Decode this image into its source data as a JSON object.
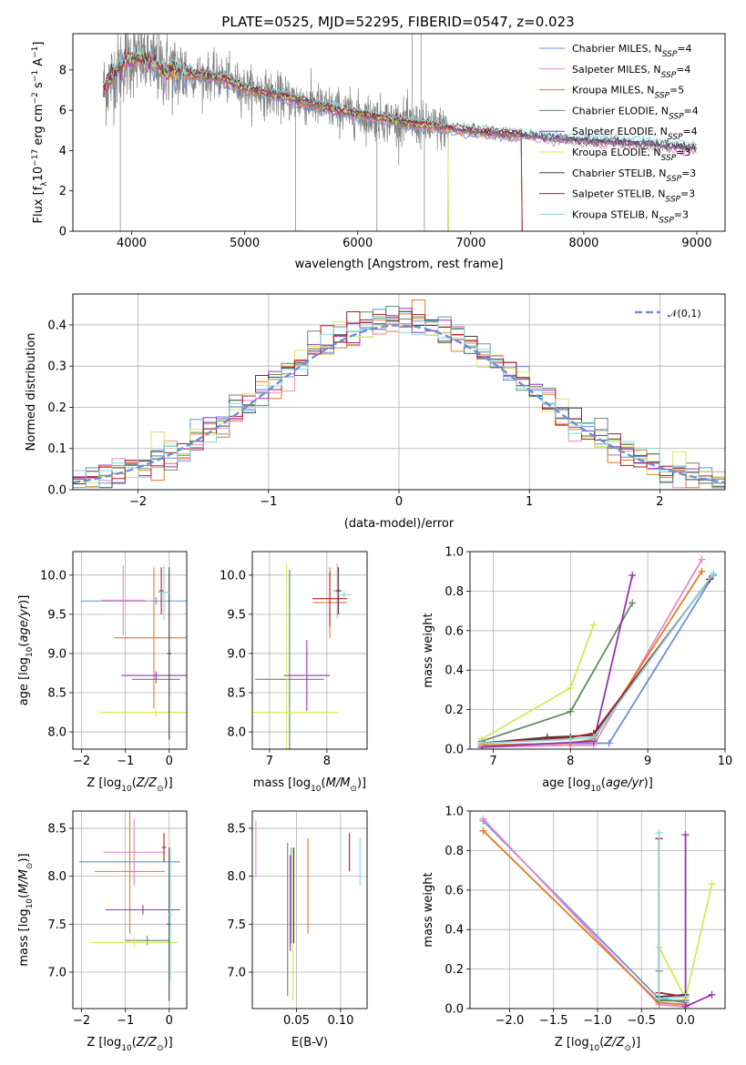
{
  "figure": {
    "title": "PLATE=0525, MJD=52295, FIBERID=0547, z=0.023"
  },
  "colors": {
    "chabrier_miles": "#6a8fd8",
    "salpeter_miles": "#e58ac8",
    "kroupa_miles": "#e07b2a",
    "chabrier_elodie": "#5f8a5f",
    "salpeter_elodie": "#9a32b0",
    "kroupa_elodie": "#d4e85a",
    "chabrier_stelib": "#404040",
    "salpeter_stelib": "#b01a22",
    "kroupa_stelib": "#86d8d8",
    "data_spectrum": "#808080",
    "normal_curve": "#6a8fd8"
  },
  "chart_data": [
    {
      "id": "spectrum",
      "type": "line",
      "xlabel": "wavelength [Angstrom, rest frame]",
      "ylabel_main": "Flux [f",
      "ylabel_sub": "λ",
      "ylabel_rest": "10",
      "ylabel_exp": "−17",
      "ylabel_unit": " erg cm",
      "ylabel_unit_exp": "−2",
      "ylabel_s": " s",
      "ylabel_s_exp": "−1",
      "ylabel_a": " A",
      "ylabel_a_exp": "−1",
      "ylabel_end": "]",
      "xlim": [
        3480,
        9250
      ],
      "ylim": [
        0,
        9.8
      ],
      "xticks": [
        4000,
        5000,
        6000,
        7000,
        8000,
        9000
      ],
      "yticks": [
        0,
        2,
        4,
        6,
        8
      ],
      "legend_position": "top-right",
      "legend": [
        {
          "name": "Chabrier MILES, N",
          "sub": "SSP",
          "tail": "=4",
          "color_key": "chabrier_miles"
        },
        {
          "name": "Salpeter MILES, N",
          "sub": "SSP",
          "tail": "=4",
          "color_key": "salpeter_miles"
        },
        {
          "name": "Kroupa MILES, N",
          "sub": "SSP",
          "tail": "=5",
          "color_key": "kroupa_miles"
        },
        {
          "name": "Chabrier ELODIE, N",
          "sub": "SSP",
          "tail": "=4",
          "color_key": "chabrier_elodie"
        },
        {
          "name": "Salpeter ELODIE, N",
          "sub": "SSP",
          "tail": "=4",
          "color_key": "salpeter_elodie"
        },
        {
          "name": "Kroupa ELODIE, N",
          "sub": "SSP",
          "tail": "=3",
          "color_key": "kroupa_elodie"
        },
        {
          "name": "Chabrier STELIB, N",
          "sub": "SSP",
          "tail": "=3",
          "color_key": "chabrier_stelib"
        },
        {
          "name": "Salpeter STELIB, N",
          "sub": "SSP",
          "tail": "=3",
          "color_key": "salpeter_stelib"
        },
        {
          "name": "Kroupa STELIB, N",
          "sub": "SSP",
          "tail": "=3",
          "color_key": "kroupa_stelib"
        }
      ],
      "continuum": [
        [
          3750,
          7.0
        ],
        [
          3800,
          7.4
        ],
        [
          3900,
          8.2
        ],
        [
          4000,
          8.6
        ],
        [
          4100,
          8.5
        ],
        [
          4200,
          8.3
        ],
        [
          4300,
          8.0
        ],
        [
          4500,
          7.8
        ],
        [
          4800,
          7.6
        ],
        [
          5000,
          7.1
        ],
        [
          5300,
          6.7
        ],
        [
          5600,
          6.3
        ],
        [
          5900,
          5.9
        ],
        [
          6200,
          5.6
        ],
        [
          6500,
          5.3
        ],
        [
          6800,
          5.1
        ],
        [
          7100,
          4.9
        ],
        [
          7400,
          4.8
        ],
        [
          7700,
          4.6
        ],
        [
          8000,
          4.5
        ],
        [
          8300,
          4.4
        ],
        [
          8600,
          4.3
        ],
        [
          9000,
          4.1
        ]
      ],
      "data_range": [
        3750,
        9000
      ],
      "model_ranges": [
        [
          3750,
          7450
        ],
        [
          3750,
          9000
        ],
        [
          3750,
          7450
        ],
        [
          3750,
          9000
        ],
        [
          3750,
          9000
        ],
        [
          3750,
          6800
        ],
        [
          3750,
          9000
        ],
        [
          3750,
          7450
        ],
        [
          3750,
          9000
        ]
      ]
    },
    {
      "id": "residuals",
      "type": "line",
      "xlabel": "(data-model)/error",
      "ylabel": "Normed distribution",
      "xlim": [
        -2.5,
        2.5
      ],
      "ylim": [
        0,
        0.475
      ],
      "xticks": [
        -2,
        -1,
        0,
        1,
        2
      ],
      "yticks": [
        0.0,
        0.1,
        0.2,
        0.3,
        0.4
      ],
      "legend_position": "top-right",
      "legend_label": "𝒩(0,1)",
      "bin_width": 0.1
    },
    {
      "id": "age_vs_Z",
      "type": "scatter",
      "xlabel": "Z [log",
      "xlabel_sub": "10",
      "xlabel_rest": "(Z/Z",
      "xlabel_sun": "⊙",
      "xlabel_end": ")]",
      "ylabel": "age  [log",
      "ylabel_sub": "10",
      "ylabel_rest": "(age/yr)]",
      "xlim": [
        -2.2,
        0.4
      ],
      "ylim": [
        7.78,
        10.3
      ],
      "xticks": [
        -2,
        -1,
        0
      ],
      "yticks": [
        8.0,
        8.5,
        9.0,
        9.5,
        10.0
      ],
      "points": [
        {
          "color_key": "chabrier_miles",
          "x": -0.3,
          "xerr": 1.7,
          "y": 9.67,
          "yerr": 0.05
        },
        {
          "color_key": "salpeter_miles",
          "x": -1.05,
          "xerr": 0.5,
          "y": 9.68,
          "yerr": 0.45
        },
        {
          "color_key": "kroupa_miles",
          "x": -0.35,
          "xerr": 0.9,
          "y": 9.2,
          "yerr": 0.9
        },
        {
          "color_key": "chabrier_elodie",
          "x": -0.3,
          "xerr": 0.55,
          "y": 8.67,
          "yerr": 0.05
        },
        {
          "color_key": "salpeter_elodie",
          "x": -0.3,
          "xerr": 0.8,
          "y": 8.72,
          "yerr": 0.05
        },
        {
          "color_key": "kroupa_elodie",
          "x": -0.3,
          "xerr": 1.3,
          "y": 8.25,
          "yerr": 0.05
        },
        {
          "color_key": "chabrier_stelib",
          "x": 0.0,
          "xerr": 0.05,
          "y": 9.0,
          "yerr": 1.1
        },
        {
          "color_key": "salpeter_stelib",
          "x": -0.18,
          "xerr": 0.05,
          "y": 9.8,
          "yerr": 0.3
        },
        {
          "color_key": "kroupa_stelib",
          "x": -0.12,
          "xerr": 0.15,
          "y": 9.78,
          "yerr": 0.35
        }
      ]
    },
    {
      "id": "age_vs_mass",
      "type": "scatter",
      "xlabel": "mass [log",
      "xlabel_sub": "10",
      "xlabel_rest": "(M/M",
      "xlabel_sun": "⊙",
      "xlabel_end": ")]",
      "xlim": [
        6.7,
        8.7
      ],
      "ylim": [
        7.78,
        10.3
      ],
      "xticks": [
        7,
        8
      ],
      "yticks": [
        8.0,
        8.5,
        9.0,
        9.5,
        10.0
      ],
      "points": [
        {
          "color_key": "chabrier_miles",
          "x": 8.2,
          "xerr": 0.05,
          "y": 9.8,
          "yerr": 0.3
        },
        {
          "color_key": "salpeter_miles",
          "x": 8.18,
          "xerr": 0.08,
          "y": 9.8,
          "yerr": 0.35
        },
        {
          "color_key": "kroupa_miles",
          "x": 8.05,
          "xerr": 0.3,
          "y": 9.65,
          "yerr": 0.45
        },
        {
          "color_key": "chabrier_elodie",
          "x": 7.35,
          "xerr": 0.6,
          "y": 8.67,
          "yerr": 1.4
        },
        {
          "color_key": "salpeter_elodie",
          "x": 7.65,
          "xerr": 0.4,
          "y": 8.72,
          "yerr": 0.45
        },
        {
          "color_key": "kroupa_elodie",
          "x": 7.3,
          "xerr": 0.9,
          "y": 8.25,
          "yerr": 1.9
        },
        {
          "color_key": "chabrier_stelib",
          "x": 8.2,
          "xerr": 0.05,
          "y": 9.8,
          "yerr": 0.3
        },
        {
          "color_key": "salpeter_stelib",
          "x": 8.05,
          "xerr": 0.3,
          "y": 9.7,
          "yerr": 0.35
        },
        {
          "color_key": "kroupa_stelib",
          "x": 8.3,
          "xerr": 0.12,
          "y": 9.75,
          "yerr": 0.05
        }
      ]
    },
    {
      "id": "mass_weight_vs_age",
      "type": "line",
      "xlabel": "age  [log",
      "xlabel_sub": "10",
      "xlabel_rest": "(age/yr)]",
      "ylabel": "mass weight",
      "xlim": [
        6.7,
        10.0
      ],
      "ylim": [
        0,
        1.0
      ],
      "xticks": [
        7,
        8,
        9,
        10
      ],
      "yticks": [
        0.0,
        0.2,
        0.4,
        0.6,
        0.8,
        1.0
      ],
      "series": [
        {
          "color_key": "chabrier_miles",
          "x": [
            6.85,
            8.0,
            8.5,
            9.85
          ],
          "y": [
            0.02,
            0.03,
            0.03,
            0.88
          ]
        },
        {
          "color_key": "salpeter_miles",
          "x": [
            6.85,
            8.0,
            8.3,
            9.7
          ],
          "y": [
            0.01,
            0.02,
            0.02,
            0.96
          ]
        },
        {
          "color_key": "kroupa_miles",
          "x": [
            6.85,
            8.0,
            8.3,
            9.7
          ],
          "y": [
            0.02,
            0.03,
            0.05,
            0.9
          ]
        },
        {
          "color_key": "chabrier_elodie",
          "x": [
            6.85,
            8.0,
            8.8
          ],
          "y": [
            0.04,
            0.19,
            0.74
          ]
        },
        {
          "color_key": "salpeter_elodie",
          "x": [
            6.85,
            8.3,
            8.8
          ],
          "y": [
            0.01,
            0.04,
            0.88
          ]
        },
        {
          "color_key": "kroupa_elodie",
          "x": [
            6.85,
            8.0,
            8.3
          ],
          "y": [
            0.05,
            0.31,
            0.63
          ]
        },
        {
          "color_key": "chabrier_stelib",
          "x": [
            6.85,
            7.7,
            8.3,
            9.8
          ],
          "y": [
            0.03,
            0.06,
            0.07,
            0.86
          ]
        },
        {
          "color_key": "salpeter_stelib",
          "x": [
            6.85,
            8.0,
            8.3,
            9.8
          ],
          "y": [
            0.03,
            0.06,
            0.08,
            0.86
          ]
        },
        {
          "color_key": "kroupa_stelib",
          "x": [
            6.85,
            8.0,
            8.3,
            9.85
          ],
          "y": [
            0.03,
            0.05,
            0.06,
            0.89
          ]
        }
      ]
    },
    {
      "id": "mass_vs_Z",
      "type": "scatter",
      "xlabel": "Z [log",
      "xlabel_sub": "10",
      "xlabel_rest": "(Z/Z",
      "xlabel_sun": "⊙",
      "xlabel_end": ")]",
      "ylabel": "mass [log",
      "ylabel_sub": "10",
      "ylabel_rest": "(M/M",
      "ylabel_sun": "⊙",
      "ylabel_end": ")]",
      "xlim": [
        -2.2,
        0.4
      ],
      "ylim": [
        6.62,
        8.68
      ],
      "xticks": [
        -2,
        -1,
        0
      ],
      "yticks": [
        7.0,
        7.5,
        8.0,
        8.5
      ],
      "points": [
        {
          "color_key": "chabrier_miles",
          "x": -0.9,
          "xerr": 1.15,
          "y": 8.15,
          "yerr": 0.05
        },
        {
          "color_key": "salpeter_miles",
          "x": -0.8,
          "xerr": 0.7,
          "y": 8.25,
          "yerr": 0.35
        },
        {
          "color_key": "kroupa_miles",
          "x": -0.9,
          "xerr": 0.8,
          "y": 8.05,
          "yerr": 0.65
        },
        {
          "color_key": "chabrier_elodie",
          "x": -0.5,
          "xerr": 0.5,
          "y": 7.33,
          "yerr": 0.05
        },
        {
          "color_key": "salpeter_elodie",
          "x": -0.6,
          "xerr": 0.85,
          "y": 7.65,
          "yerr": 0.05
        },
        {
          "color_key": "kroupa_elodie",
          "x": -0.8,
          "xerr": 1.0,
          "y": 7.31,
          "yerr": 0.05
        },
        {
          "color_key": "chabrier_stelib",
          "x": 0.0,
          "xerr": 0.05,
          "y": 7.5,
          "yerr": 0.8
        },
        {
          "color_key": "salpeter_stelib",
          "x": -0.12,
          "xerr": 0.05,
          "y": 8.3,
          "yerr": 0.15
        },
        {
          "color_key": "kroupa_stelib",
          "x": 0.02,
          "xerr": 0.05,
          "y": 7.6,
          "yerr": 0.7
        }
      ]
    },
    {
      "id": "mass_vs_ebv",
      "type": "scatter",
      "xlabel": "E(B-V)",
      "xlim": [
        0.0,
        0.13
      ],
      "ylim": [
        6.62,
        8.68
      ],
      "xticks": [
        0.05,
        0.1
      ],
      "yticks": [
        7.0,
        7.5,
        8.0,
        8.5
      ],
      "points": [
        {
          "color_key": "chabrier_miles",
          "x": 0.044,
          "y": 7.8,
          "yerr": 0.5
        },
        {
          "color_key": "salpeter_miles",
          "x": 0.004,
          "y": 8.28,
          "yerr": 0.3
        },
        {
          "color_key": "kroupa_miles",
          "x": 0.063,
          "y": 7.9,
          "yerr": 0.5
        },
        {
          "color_key": "chabrier_elodie",
          "x": 0.04,
          "y": 7.55,
          "yerr": 0.8
        },
        {
          "color_key": "salpeter_elodie",
          "x": 0.043,
          "y": 7.72,
          "yerr": 0.5
        },
        {
          "color_key": "kroupa_elodie",
          "x": 0.046,
          "y": 7.5,
          "yerr": 0.8
        },
        {
          "color_key": "chabrier_stelib",
          "x": 0.047,
          "y": 7.8,
          "yerr": 0.5
        },
        {
          "color_key": "salpeter_stelib",
          "x": 0.11,
          "y": 8.25,
          "yerr": 0.2
        },
        {
          "color_key": "kroupa_stelib",
          "x": 0.122,
          "y": 8.15,
          "yerr": 0.25
        }
      ]
    },
    {
      "id": "mass_weight_vs_Z",
      "type": "line",
      "xlabel": "Z [log",
      "xlabel_sub": "10",
      "xlabel_rest": "(Z/Z",
      "xlabel_sun": "⊙",
      "xlabel_end": ")]",
      "ylabel": "mass weight",
      "xlim": [
        -2.45,
        0.45
      ],
      "ylim": [
        0,
        1.0
      ],
      "xticks": [
        -2.0,
        -1.5,
        -1.0,
        -0.5,
        0.0
      ],
      "yticks": [
        0.0,
        0.2,
        0.4,
        0.6,
        0.8,
        1.0
      ],
      "series": [
        {
          "color_key": "chabrier_miles",
          "x": [
            -2.3,
            -0.3,
            0.0
          ],
          "y": [
            0.95,
            0.05,
            0.03
          ]
        },
        {
          "color_key": "salpeter_miles",
          "x": [
            -2.3,
            -0.3,
            0.0
          ],
          "y": [
            0.96,
            0.02,
            0.01
          ]
        },
        {
          "color_key": "kroupa_miles",
          "x": [
            -2.3,
            -0.3,
            0.0
          ],
          "y": [
            0.9,
            0.03,
            0.02
          ]
        },
        {
          "color_key": "chabrier_elodie",
          "x": [
            -0.3,
            -0.3,
            0.0
          ],
          "y": [
            0.19,
            0.04,
            0.04
          ]
        },
        {
          "color_key": "salpeter_elodie",
          "x": [
            0.0,
            0.0,
            0.3
          ],
          "y": [
            0.88,
            0.01,
            0.07
          ]
        },
        {
          "color_key": "kroupa_elodie",
          "x": [
            -0.3,
            0.0,
            0.3
          ],
          "y": [
            0.31,
            0.05,
            0.63
          ]
        },
        {
          "color_key": "chabrier_stelib",
          "x": [
            -0.3,
            -0.3,
            0.0
          ],
          "y": [
            0.86,
            0.06,
            0.07
          ]
        },
        {
          "color_key": "salpeter_stelib",
          "x": [
            -0.3,
            -0.3,
            0.0
          ],
          "y": [
            0.86,
            0.08,
            0.06
          ]
        },
        {
          "color_key": "kroupa_stelib",
          "x": [
            -0.3,
            -0.3,
            0.0
          ],
          "y": [
            0.89,
            0.05,
            0.06
          ]
        }
      ]
    }
  ]
}
